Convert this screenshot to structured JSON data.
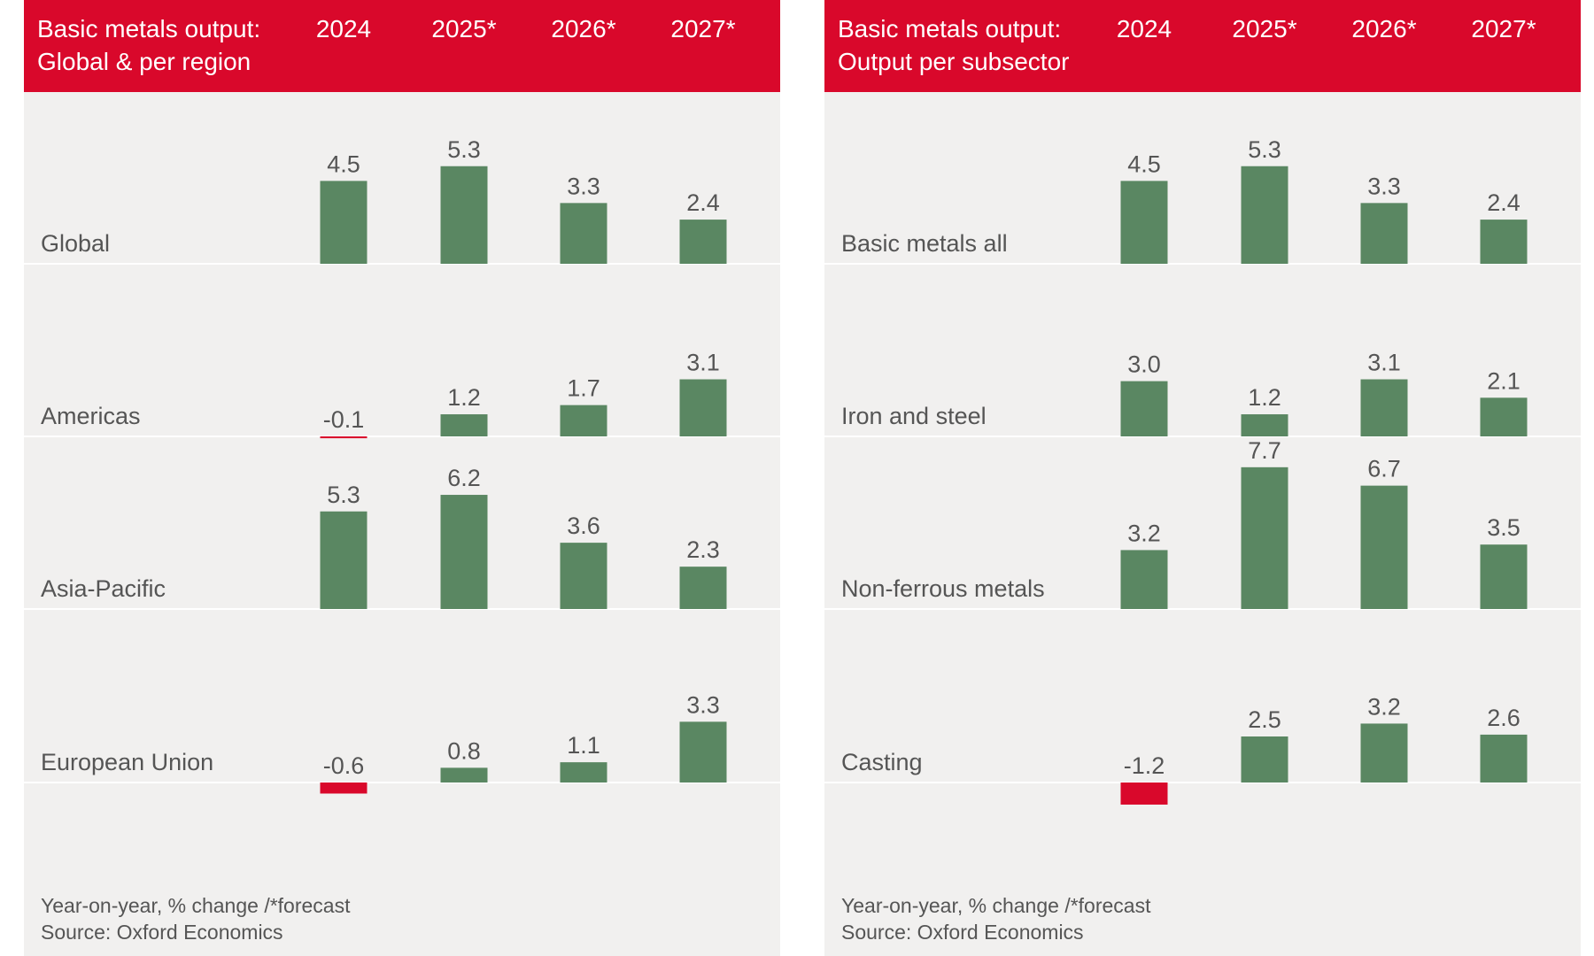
{
  "chart_data": [
    {
      "type": "bar",
      "title": "Basic metals output:",
      "subtitle": "Global & per region",
      "categories": [
        "2024",
        "2025*",
        "2026*",
        "2027*"
      ],
      "color": "#5a8762",
      "negative_color": "#d9082b",
      "series": [
        {
          "name": "Global",
          "values": [
            4.5,
            5.3,
            3.3,
            2.4
          ]
        },
        {
          "name": "Americas",
          "values": [
            -0.1,
            1.2,
            1.7,
            3.1
          ]
        },
        {
          "name": "Asia-Pacific",
          "values": [
            5.3,
            6.2,
            3.6,
            2.3
          ]
        },
        {
          "name": "European Union",
          "values": [
            -0.6,
            0.8,
            1.1,
            3.3
          ]
        }
      ],
      "note": "Year-on-year, % change /*forecast",
      "source": "Source: Oxford Economics"
    },
    {
      "type": "bar",
      "title": "Basic metals output:",
      "subtitle": "Output per subsector",
      "categories": [
        "2024",
        "2025*",
        "2026*",
        "2027*"
      ],
      "color": "#5a8762",
      "negative_color": "#d9082b",
      "series": [
        {
          "name": "Basic metals all",
          "values": [
            4.5,
            5.3,
            3.3,
            2.4
          ]
        },
        {
          "name": "Iron and steel",
          "values": [
            3,
            1.2,
            3.1,
            2.1
          ],
          "value_labels": [
            "3.0",
            "1.2",
            "3.1",
            "2.1"
          ]
        },
        {
          "name": "Non-ferrous metals",
          "values": [
            3.2,
            7.7,
            6.7,
            3.5
          ]
        },
        {
          "name": "Casting",
          "values": [
            -1.2,
            2.5,
            3.2,
            2.6
          ]
        }
      ],
      "note": "Year-on-year, % change /*forecast",
      "source": "Source: Oxford Economics"
    }
  ]
}
